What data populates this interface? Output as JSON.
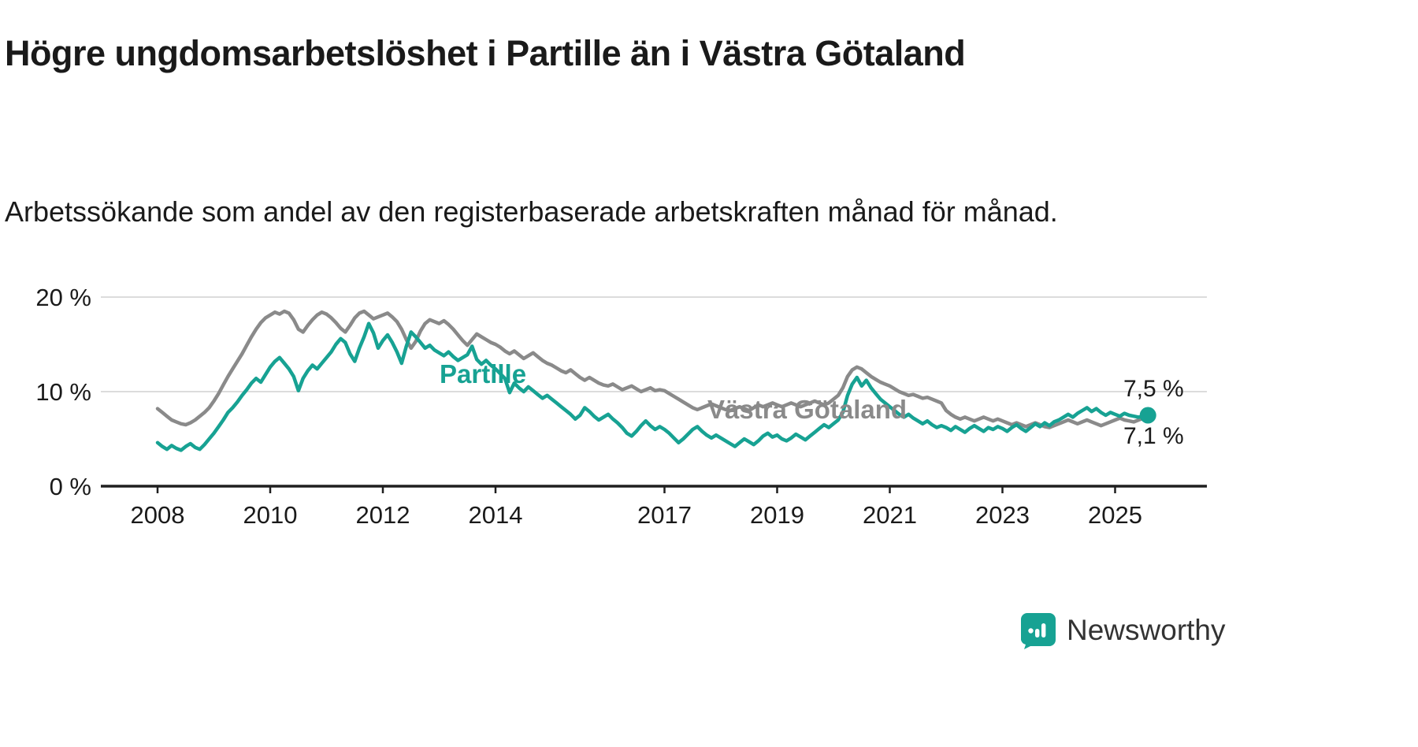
{
  "title": "Högre ungdomsarbetslöshet i Partille än i Västra Götaland",
  "subtitle": "Arbetssökande som andel av den registerbaserade arbetskraften månad för månad.",
  "branding": {
    "logo_text": "Newsworthy",
    "brand_color": "#17a293"
  },
  "chart_data": {
    "type": "line",
    "title": "Högre ungdomsarbetslöshet i Partille än i Västra Götaland",
    "xlabel": "",
    "ylabel": "",
    "grid": "horizontal",
    "legend": "inline-labels",
    "x_start_year": 2008,
    "points_per_year": 12,
    "ylim": [
      0,
      21
    ],
    "x_ticks": [
      2008,
      2010,
      2012,
      2014,
      2017,
      2019,
      2021,
      2023,
      2025
    ],
    "y_ticks": [
      {
        "v": 0,
        "label": "0 %"
      },
      {
        "v": 10,
        "label": "10 %"
      },
      {
        "v": 20,
        "label": "20 %"
      }
    ],
    "series": [
      {
        "name": "Partille",
        "color": "#17a293",
        "end_label": "7,5 %",
        "end_value": 7.5,
        "end_dot": true,
        "values": [
          4.6,
          4.2,
          3.9,
          4.3,
          4.0,
          3.8,
          4.2,
          4.5,
          4.1,
          3.9,
          4.4,
          5.0,
          5.6,
          6.3,
          7.0,
          7.8,
          8.3,
          8.9,
          9.6,
          10.2,
          10.9,
          11.4,
          11.0,
          11.8,
          12.6,
          13.2,
          13.6,
          13.0,
          12.4,
          11.6,
          10.1,
          11.4,
          12.2,
          12.8,
          12.4,
          13.0,
          13.6,
          14.2,
          15.0,
          15.6,
          15.2,
          14.0,
          13.2,
          14.6,
          15.8,
          17.2,
          16.2,
          14.6,
          15.4,
          16.0,
          15.2,
          14.2,
          13.0,
          14.8,
          16.3,
          15.8,
          15.2,
          14.6,
          14.9,
          14.4,
          14.1,
          13.8,
          14.2,
          13.7,
          13.3,
          13.6,
          13.9,
          14.8,
          13.4,
          12.9,
          13.3,
          12.8,
          12.4,
          11.9,
          11.4,
          9.9,
          10.9,
          10.4,
          10.0,
          10.5,
          10.1,
          9.7,
          9.3,
          9.6,
          9.2,
          8.8,
          8.4,
          8.0,
          7.6,
          7.1,
          7.5,
          8.3,
          7.9,
          7.4,
          7.0,
          7.3,
          7.6,
          7.1,
          6.7,
          6.2,
          5.6,
          5.3,
          5.8,
          6.4,
          6.9,
          6.4,
          6.0,
          6.3,
          6.0,
          5.6,
          5.1,
          4.6,
          5.0,
          5.5,
          6.0,
          6.3,
          5.8,
          5.4,
          5.1,
          5.4,
          5.1,
          4.8,
          4.5,
          4.2,
          4.6,
          5.0,
          4.7,
          4.4,
          4.8,
          5.3,
          5.6,
          5.2,
          5.4,
          5.0,
          4.8,
          5.1,
          5.5,
          5.2,
          4.9,
          5.3,
          5.7,
          6.1,
          6.5,
          6.2,
          6.6,
          7.0,
          7.8,
          9.6,
          10.8,
          11.5,
          10.6,
          11.2,
          10.4,
          9.8,
          9.2,
          8.8,
          8.4,
          8.0,
          7.6,
          7.3,
          7.6,
          7.2,
          6.9,
          6.6,
          6.9,
          6.5,
          6.2,
          6.4,
          6.2,
          5.9,
          6.3,
          6.0,
          5.7,
          6.1,
          6.4,
          6.1,
          5.8,
          6.2,
          6.0,
          6.3,
          6.1,
          5.8,
          6.2,
          6.5,
          6.1,
          5.8,
          6.2,
          6.6,
          6.3,
          6.7,
          6.4,
          6.8,
          7.0,
          7.3,
          7.6,
          7.3,
          7.7,
          8.0,
          8.3,
          7.9,
          8.2,
          7.8,
          7.5,
          7.8,
          7.6,
          7.4,
          7.7,
          7.5,
          7.4,
          7.3,
          7.4,
          7.5
        ]
      },
      {
        "name": "Västra Götaland",
        "color": "#8a8a8a",
        "end_label": "7,1 %",
        "end_value": 7.1,
        "end_dot": false,
        "values": [
          8.2,
          7.8,
          7.4,
          7.0,
          6.8,
          6.6,
          6.5,
          6.7,
          7.0,
          7.4,
          7.8,
          8.3,
          9.0,
          9.8,
          10.7,
          11.6,
          12.4,
          13.2,
          14.0,
          14.9,
          15.8,
          16.6,
          17.3,
          17.8,
          18.1,
          18.4,
          18.2,
          18.5,
          18.3,
          17.6,
          16.6,
          16.3,
          17.0,
          17.6,
          18.1,
          18.4,
          18.2,
          17.8,
          17.3,
          16.7,
          16.3,
          17.0,
          17.8,
          18.3,
          18.5,
          18.1,
          17.7,
          17.9,
          18.1,
          18.3,
          17.9,
          17.4,
          16.6,
          15.5,
          14.6,
          15.3,
          16.4,
          17.2,
          17.6,
          17.4,
          17.2,
          17.5,
          17.1,
          16.6,
          16.0,
          15.4,
          14.9,
          15.5,
          16.1,
          15.8,
          15.5,
          15.2,
          15.0,
          14.7,
          14.3,
          14.0,
          14.3,
          13.9,
          13.5,
          13.8,
          14.1,
          13.7,
          13.3,
          13.0,
          12.8,
          12.5,
          12.2,
          12.0,
          12.3,
          11.9,
          11.5,
          11.2,
          11.5,
          11.2,
          10.9,
          10.7,
          10.6,
          10.8,
          10.5,
          10.2,
          10.4,
          10.6,
          10.3,
          10.0,
          10.2,
          10.4,
          10.1,
          10.2,
          10.1,
          9.8,
          9.5,
          9.2,
          8.9,
          8.6,
          8.3,
          8.1,
          8.3,
          8.5,
          8.7,
          8.5,
          8.3,
          8.1,
          8.0,
          8.2,
          8.4,
          8.2,
          8.0,
          8.3,
          8.6,
          8.4,
          8.6,
          8.8,
          8.6,
          8.4,
          8.6,
          8.8,
          8.6,
          8.4,
          8.6,
          8.8,
          9.0,
          8.8,
          8.6,
          8.8,
          9.2,
          9.6,
          10.4,
          11.6,
          12.3,
          12.6,
          12.4,
          12.0,
          11.6,
          11.3,
          11.0,
          10.8,
          10.6,
          10.3,
          10.0,
          9.8,
          9.6,
          9.7,
          9.5,
          9.3,
          9.4,
          9.2,
          9.0,
          8.8,
          8.0,
          7.6,
          7.3,
          7.1,
          7.3,
          7.1,
          6.9,
          7.1,
          7.3,
          7.1,
          6.9,
          7.1,
          6.9,
          6.7,
          6.5,
          6.7,
          6.5,
          6.3,
          6.5,
          6.7,
          6.5,
          6.3,
          6.2,
          6.4,
          6.6,
          6.8,
          7.0,
          6.8,
          6.6,
          6.8,
          7.0,
          6.8,
          6.6,
          6.4,
          6.6,
          6.8,
          7.0,
          7.2,
          7.0,
          6.9,
          6.8,
          7.0,
          7.2,
          7.1
        ]
      }
    ]
  }
}
